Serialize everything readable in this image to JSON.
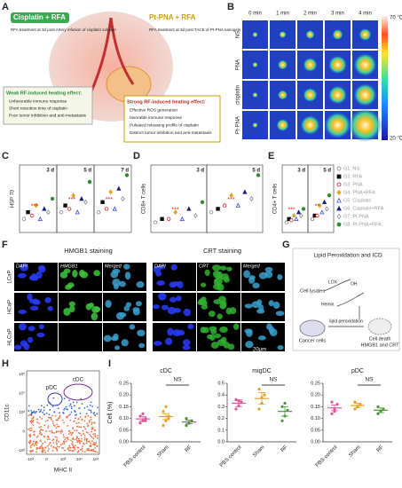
{
  "panel_labels": [
    "A",
    "B",
    "C",
    "D",
    "E",
    "F",
    "G",
    "H",
    "I"
  ],
  "panel_a": {
    "left_title": "Cisplatin + RFA",
    "left_desc": "RFA treatment at 3d post Artery infusion of cisplatin solution",
    "right_title": "Pt-PNA + RFA",
    "right_desc": "RFA treatment at 3d post TACE of Pt-PNA nanogels",
    "weak_title": "Weak RF-induced heating effect:",
    "weak_items": [
      "Unfavorable immune response",
      "Short retention time of cisplatin",
      "Poor tumor inhibition and anti-metastasis"
    ],
    "strong_title": "Strong RF-induced heating effect:",
    "strong_items": [
      "Effective ROS generation",
      "favorable immune response",
      "Pulsated releasing profile of cisplatin",
      "Distinct tumor inhibition and anti-metastasis"
    ]
  },
  "panel_b": {
    "times": [
      "0 min",
      "1 min",
      "2 min",
      "3 min",
      "4 min"
    ],
    "rows": [
      "NS",
      "PNA",
      "cisplatin",
      "Pt-PNA"
    ],
    "scale_max": "70 °C",
    "scale_min": "20 °C"
  },
  "groups": [
    {
      "name": "G1: NS",
      "color": "#888888",
      "marker": "circle-open"
    },
    {
      "name": "G2: RFA",
      "color": "#111111",
      "marker": "square"
    },
    {
      "name": "G3: PNA",
      "color": "#d62020",
      "marker": "circle-open"
    },
    {
      "name": "G4: PNA+RFA",
      "color": "#e8a020",
      "marker": "diamond"
    },
    {
      "name": "G5: Cisplatin",
      "color": "#3050d0",
      "marker": "triangle-open"
    },
    {
      "name": "G6: Cisplatin+RFA",
      "color": "#1a237e",
      "marker": "triangle"
    },
    {
      "name": "G7: Pt-PNA",
      "color": "#888888",
      "marker": "diamond-open"
    },
    {
      "name": "G8: Pt-PNA+RFA",
      "color": "#2e8b2e",
      "marker": "circle"
    }
  ],
  "chart_data": [
    {
      "type": "dotgroup",
      "ylabel": "HSP 70",
      "days": [
        "3 d",
        "5 d",
        "7 d"
      ],
      "ylim": [
        0,
        10
      ],
      "values": [
        [
          2,
          3,
          3
        ],
        [
          3,
          4,
          4.5
        ],
        [
          2.5,
          3.5,
          3.5
        ],
        [
          4,
          5.5,
          6
        ],
        [
          2,
          3,
          3.5
        ],
        [
          3.5,
          5,
          6.5
        ],
        [
          3,
          4.5,
          5
        ],
        [
          5,
          7.5,
          8.5
        ]
      ],
      "annotations": [
        "***",
        "***",
        "***"
      ]
    },
    {
      "type": "dotgroup",
      "ylabel": "CD8+ T cells",
      "days": [
        "3 d",
        "5 d"
      ],
      "ylim": [
        0,
        10
      ],
      "values": [
        [
          1.5,
          3
        ],
        [
          2,
          3.5
        ],
        [
          2,
          4
        ],
        [
          3,
          5.5
        ],
        [
          2,
          4
        ],
        [
          3.5,
          6
        ],
        [
          2.5,
          5
        ],
        [
          4.5,
          8.5
        ]
      ],
      "annotations": [
        "***",
        "***"
      ]
    },
    {
      "type": "dotgroup",
      "ylabel": "CD4+ T cells",
      "days": [
        "3 d",
        "5 d"
      ],
      "ylim": [
        0,
        10
      ],
      "values": [
        [
          1.5,
          2
        ],
        [
          2,
          2.5
        ],
        [
          1.8,
          2.5
        ],
        [
          2.5,
          4
        ],
        [
          2,
          3
        ],
        [
          3,
          4.5
        ],
        [
          2.5,
          3.5
        ],
        [
          3.5,
          5.5
        ]
      ],
      "annotations": [
        "***",
        "**"
      ],
      "legend": true
    },
    {
      "type": "meanpoints",
      "title": "cDC",
      "ylabel": "Cell (%)",
      "categories": [
        "PBS control",
        "Sham",
        "RF"
      ],
      "colors": [
        "#e0559b",
        "#e8a020",
        "#4a9a3a"
      ],
      "values": [
        0.098,
        0.108,
        0.085
      ],
      "errors": [
        0.01,
        0.013,
        0.008
      ],
      "points": [
        [
          0.08,
          0.09,
          0.1,
          0.11,
          0.12,
          0.09
        ],
        [
          0.07,
          0.09,
          0.11,
          0.13,
          0.15,
          0.1
        ],
        [
          0.07,
          0.08,
          0.09,
          0.1,
          0.08,
          0.09
        ]
      ],
      "ylim": [
        0,
        0.25
      ],
      "yticks": [
        {
          "value": 0,
          "label": "0.00"
        },
        {
          "value": 0.05,
          "label": "0.05"
        },
        {
          "value": 0.1,
          "label": "0.10"
        },
        {
          "value": 0.15,
          "label": "0.15"
        },
        {
          "value": 0.2,
          "label": "0.20"
        },
        {
          "value": 0.25,
          "label": "0.25"
        }
      ],
      "annotation": "NS"
    },
    {
      "type": "meanpoints",
      "title": "migDC",
      "categories": [
        "PBS control",
        "Sham",
        "RF"
      ],
      "colors": [
        "#e0559b",
        "#e8a020",
        "#4a9a3a"
      ],
      "values": [
        0.33,
        0.37,
        0.26
      ],
      "errors": [
        0.03,
        0.05,
        0.04
      ],
      "points": [
        [
          0.28,
          0.31,
          0.34,
          0.36,
          0.35
        ],
        [
          0.28,
          0.33,
          0.4,
          0.45,
          0.38
        ],
        [
          0.18,
          0.22,
          0.27,
          0.3,
          0.33
        ]
      ],
      "ylim": [
        0,
        0.5
      ],
      "yticks": [
        {
          "value": 0,
          "label": "0.0"
        },
        {
          "value": 0.1,
          "label": "0.1"
        },
        {
          "value": 0.2,
          "label": "0.2"
        },
        {
          "value": 0.3,
          "label": "0.3"
        },
        {
          "value": 0.4,
          "label": "0.4"
        },
        {
          "value": 0.5,
          "label": "0.5"
        }
      ],
      "annotation": "NS"
    },
    {
      "type": "meanpoints",
      "title": "pDC",
      "categories": [
        "PBS control",
        "Sham",
        "RF"
      ],
      "colors": [
        "#e0559b",
        "#e8a020",
        "#4a9a3a"
      ],
      "values": [
        0.145,
        0.155,
        0.135
      ],
      "errors": [
        0.012,
        0.01,
        0.01
      ],
      "points": [
        [
          0.12,
          0.14,
          0.16,
          0.17,
          0.13
        ],
        [
          0.14,
          0.15,
          0.16,
          0.17,
          0.15
        ],
        [
          0.12,
          0.13,
          0.14,
          0.15,
          0.13
        ]
      ],
      "ylim": [
        0,
        0.25
      ],
      "yticks": [
        {
          "value": 0,
          "label": "0.00"
        },
        {
          "value": 0.05,
          "label": "0.05"
        },
        {
          "value": 0.1,
          "label": "0.10"
        },
        {
          "value": 0.15,
          "label": "0.15"
        },
        {
          "value": 0.2,
          "label": "0.20"
        },
        {
          "value": 0.25,
          "label": "0.25"
        }
      ],
      "annotation": "NS"
    }
  ],
  "panel_f": {
    "left_title": "HMGB1 staining",
    "right_title": "CRT staining",
    "columns": [
      "DAPI",
      "HMGB1",
      "Merged",
      "DAPI",
      "CRT",
      "Merged"
    ],
    "rows": [
      "LCaP",
      "HCaP",
      "HLCaP"
    ],
    "scale": "20μm"
  },
  "panel_g": {
    "title": "Lipid Peroxidation and ICD",
    "cell_lysates": "Cell lysates",
    "lox": "LOX",
    "hemin": "Hemin",
    "oh": "OH",
    "lipid_perox": "lipid peroxidation",
    "cancer": "Cancer cells",
    "death": "Cell death",
    "markers": "HMGB1 and CRT"
  },
  "panel_h": {
    "ylabel": "CD11c",
    "xlabel": "MHC II",
    "pdc": "pDC",
    "cdc": "cDC",
    "xtick_labels": [
      "-10³",
      "0",
      "10³",
      "10⁴",
      "10⁵"
    ],
    "ytick_labels": [
      "-10³",
      "0",
      "10³",
      "10⁴",
      "10⁵"
    ]
  }
}
